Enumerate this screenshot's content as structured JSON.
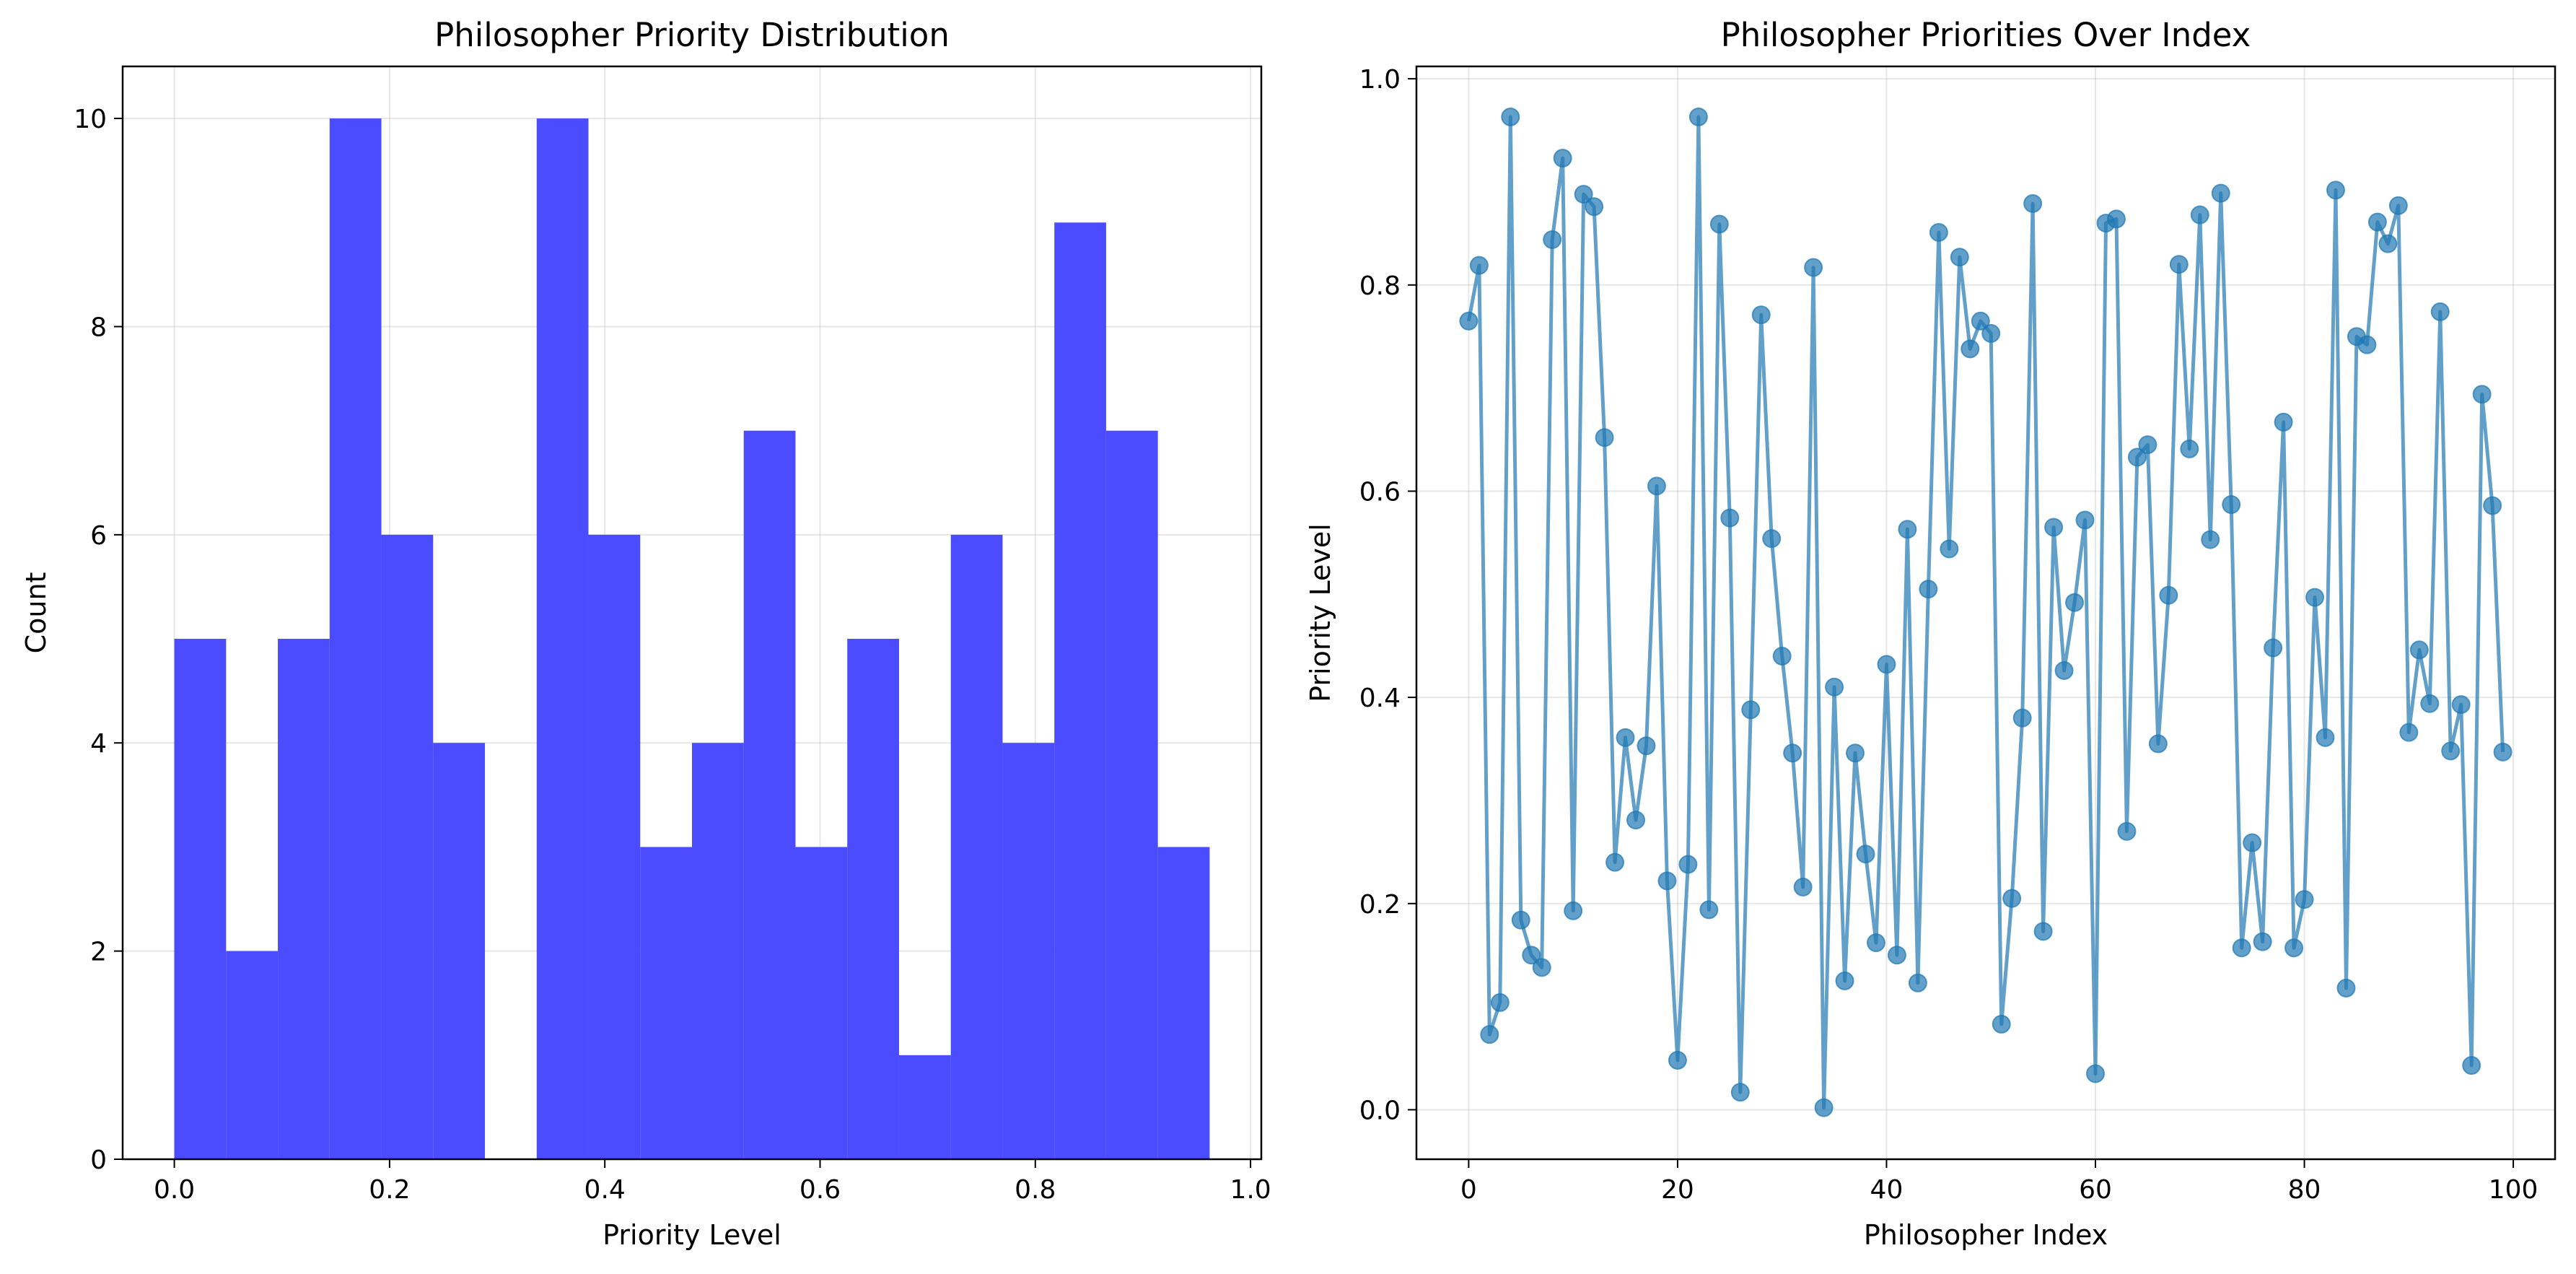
{
  "chart_data": [
    {
      "type": "bar",
      "title": "Philosopher Priority Distribution",
      "xlabel": "Priority Level",
      "ylabel": "Count",
      "xlim": [
        -0.048,
        1.01
      ],
      "ylim": [
        0,
        10.5
      ],
      "xticks": [
        "0.0",
        "0.2",
        "0.4",
        "0.6",
        "0.8",
        "1.0"
      ],
      "yticks": [
        "0",
        "2",
        "4",
        "6",
        "8",
        "10"
      ],
      "grid": true,
      "color": "#4b4bff",
      "bins": [
        {
          "x0": 0.0,
          "x1": 0.0481,
          "count": 5
        },
        {
          "x0": 0.0481,
          "x1": 0.0962,
          "count": 2
        },
        {
          "x0": 0.0962,
          "x1": 0.1443,
          "count": 5
        },
        {
          "x0": 0.1443,
          "x1": 0.1924,
          "count": 10
        },
        {
          "x0": 0.1924,
          "x1": 0.2405,
          "count": 6
        },
        {
          "x0": 0.2405,
          "x1": 0.2886,
          "count": 4
        },
        {
          "x0": 0.2886,
          "x1": 0.3367,
          "count": 0
        },
        {
          "x0": 0.3367,
          "x1": 0.3848,
          "count": 10
        },
        {
          "x0": 0.3848,
          "x1": 0.4329,
          "count": 6
        },
        {
          "x0": 0.4329,
          "x1": 0.481,
          "count": 3
        },
        {
          "x0": 0.481,
          "x1": 0.5291,
          "count": 4
        },
        {
          "x0": 0.5291,
          "x1": 0.5772,
          "count": 7
        },
        {
          "x0": 0.5772,
          "x1": 0.6253,
          "count": 3
        },
        {
          "x0": 0.6253,
          "x1": 0.6734,
          "count": 5
        },
        {
          "x0": 0.6734,
          "x1": 0.7215,
          "count": 1
        },
        {
          "x0": 0.7215,
          "x1": 0.7696,
          "count": 6
        },
        {
          "x0": 0.7696,
          "x1": 0.8177,
          "count": 4
        },
        {
          "x0": 0.8177,
          "x1": 0.8658,
          "count": 9
        },
        {
          "x0": 0.8658,
          "x1": 0.9139,
          "count": 7
        },
        {
          "x0": 0.9139,
          "x1": 0.962,
          "count": 3
        }
      ]
    },
    {
      "type": "line",
      "title": "Philosopher Priorities Over Index",
      "xlabel": "Philosopher Index",
      "ylabel": "Priority Level",
      "xlim": [
        -5,
        104
      ],
      "ylim": [
        -0.048,
        1.012
      ],
      "xticks": [
        "0",
        "20",
        "40",
        "60",
        "80",
        "100"
      ],
      "yticks": [
        "0.0",
        "0.2",
        "0.4",
        "0.6",
        "0.8",
        "1.0"
      ],
      "grid": true,
      "color": "#1f77b4",
      "series": [
        {
          "x": [
            0,
            1,
            2,
            3,
            4,
            5,
            6,
            7,
            8,
            9,
            10,
            11,
            12,
            13,
            14,
            15,
            16,
            17,
            18,
            19,
            20,
            21,
            22,
            23,
            24,
            25,
            26,
            27,
            28,
            29,
            30,
            31,
            32,
            33,
            34,
            35,
            36,
            37,
            38,
            39,
            40,
            41,
            42,
            43,
            44,
            45,
            46,
            47,
            48,
            49,
            50,
            51,
            52,
            53,
            54,
            55,
            56,
            57,
            58,
            59,
            60,
            61,
            62,
            63,
            64,
            65,
            66,
            67,
            68,
            69,
            70,
            71,
            72,
            73,
            74,
            75,
            76,
            77,
            78,
            79,
            80,
            81,
            82,
            83,
            84,
            85,
            86,
            87,
            88,
            89,
            90,
            91,
            92,
            93,
            94,
            95,
            96,
            97,
            98,
            99
          ],
          "values": [
            0.765,
            0.819,
            0.073,
            0.104,
            0.963,
            0.184,
            0.15,
            0.138,
            0.844,
            0.923,
            0.193,
            0.888,
            0.876,
            0.652,
            0.24,
            0.361,
            0.281,
            0.353,
            0.605,
            0.222,
            0.048,
            0.238,
            0.963,
            0.194,
            0.859,
            0.574,
            0.017,
            0.388,
            0.771,
            0.554,
            0.44,
            0.346,
            0.216,
            0.817,
            0.002,
            0.41,
            0.125,
            0.346,
            0.248,
            0.162,
            0.432,
            0.15,
            0.563,
            0.123,
            0.505,
            0.851,
            0.544,
            0.827,
            0.738,
            0.765,
            0.753,
            0.083,
            0.205,
            0.38,
            0.879,
            0.173,
            0.565,
            0.426,
            0.492,
            0.572,
            0.035,
            0.86,
            0.864,
            0.27,
            0.633,
            0.645,
            0.355,
            0.499,
            0.82,
            0.641,
            0.868,
            0.553,
            0.889,
            0.587,
            0.157,
            0.259,
            0.163,
            0.448,
            0.667,
            0.157,
            0.204,
            0.497,
            0.361,
            0.892,
            0.118,
            0.75,
            0.742,
            0.861,
            0.84,
            0.877,
            0.366,
            0.446,
            0.394,
            0.774,
            0.348,
            0.393,
            0.043,
            0.694,
            0.586,
            0.347
          ]
        }
      ]
    }
  ]
}
